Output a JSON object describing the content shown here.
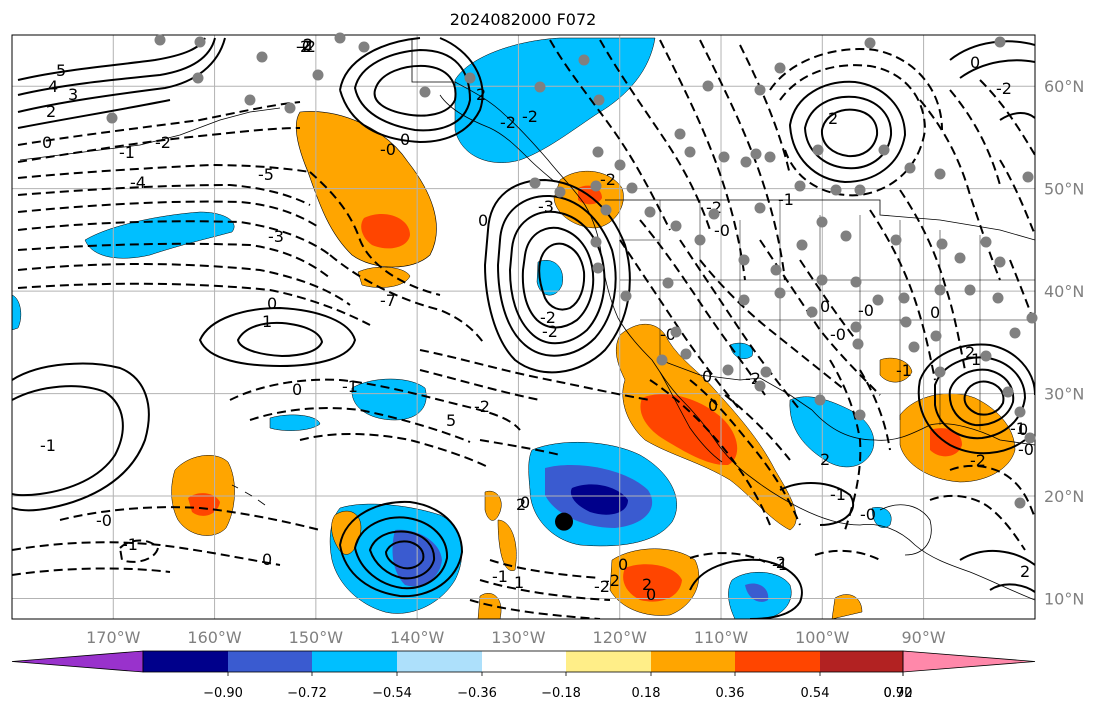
{
  "title": "2024082000 F072",
  "map": {
    "lon_min": -180,
    "lon_max": -79,
    "lat_min": 8,
    "lat_max": 65,
    "lon_ticks": [
      "170°W",
      "160°W",
      "150°W",
      "140°W",
      "130°W",
      "120°W",
      "110°W",
      "100°W",
      "90°W"
    ],
    "lat_ticks": [
      "10°N",
      "20°N",
      "30°N",
      "40°N",
      "50°N",
      "60°N"
    ],
    "grid": true,
    "projection": "PlateCarree",
    "coastlines": true,
    "borders": "countries and US states"
  },
  "colorbar": {
    "orientation": "horizontal",
    "extend": "both",
    "tick_labels": [
      "−0.90",
      "−0.72",
      "−0.54",
      "−0.36",
      "−0.18",
      "0.18",
      "0.36",
      "0.54",
      "0.72",
      "0.90"
    ],
    "colors": [
      "#9932CC",
      "#00008B",
      "#3A5BD0",
      "#00BFFF",
      "#ADE0FB",
      "#FFFFFF",
      "#FFEE88",
      "#FFA500",
      "#FF4500",
      "#B22222",
      "#FF88AA"
    ]
  },
  "contour_labels": [
    "-2",
    "2",
    "5",
    "4",
    "3",
    "2",
    "0",
    "-1",
    "-2",
    "-4",
    "-5",
    "-0",
    "-3",
    "-7",
    "0",
    "1",
    "0",
    "-1",
    "-2",
    "5",
    "-3",
    "-2",
    "-2",
    "0",
    "-2",
    "2",
    "-2",
    "0",
    "-0",
    "2",
    "0",
    "-2",
    "-1",
    "0",
    "-1",
    "-0",
    "-2",
    "-0",
    "2",
    "0",
    "-0",
    "-1",
    "0",
    "1",
    "-1",
    "-2",
    "-0",
    "-0",
    "2",
    "0",
    "-2",
    "0",
    "-0",
    "-2",
    "-1",
    "2",
    "-1",
    "0",
    "2",
    "0",
    "-2",
    "-1",
    "2",
    "1",
    "-2",
    "-1",
    "2",
    "0",
    "-2",
    "-0",
    "0"
  ],
  "markers": {
    "black_point": {
      "lon": -125.5,
      "lat": 17.5
    }
  }
}
